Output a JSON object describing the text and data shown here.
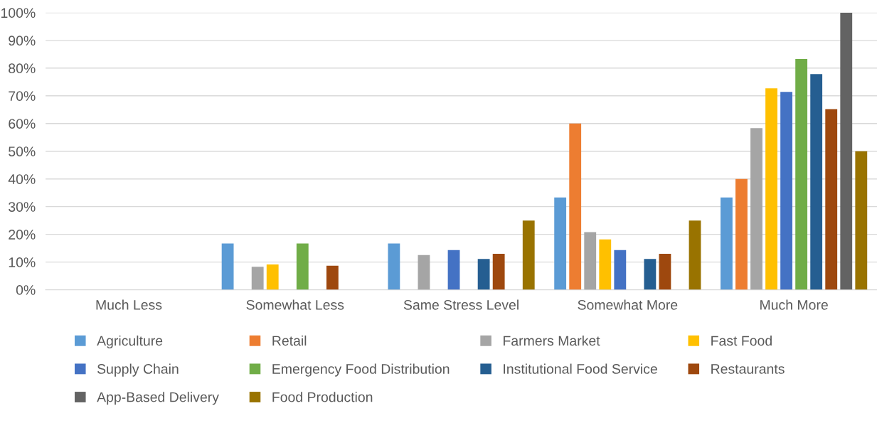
{
  "chart_data": {
    "type": "bar",
    "categories": [
      "Much Less",
      "Somewhat Less",
      "Same Stress Level",
      "Somewhat More",
      "Much More"
    ],
    "series": [
      {
        "name": "Agriculture",
        "color": "#5b9bd5",
        "values": [
          0,
          16.7,
          16.7,
          33.3,
          33.3
        ]
      },
      {
        "name": "Retail",
        "color": "#ed7d31",
        "values": [
          0,
          0,
          0,
          60,
          40
        ]
      },
      {
        "name": "Farmers Market",
        "color": "#a5a5a5",
        "values": [
          0,
          8.3,
          12.5,
          20.8,
          58.3
        ]
      },
      {
        "name": "Fast Food",
        "color": "#ffc000",
        "values": [
          0,
          9.1,
          0,
          18.2,
          72.7
        ]
      },
      {
        "name": "Supply Chain",
        "color": "#4472c4",
        "values": [
          0,
          0,
          14.3,
          14.3,
          71.4
        ]
      },
      {
        "name": "Emergency Food Distribution",
        "color": "#70ad47",
        "values": [
          0,
          16.7,
          0,
          0,
          83.3
        ]
      },
      {
        "name": "Institutional Food Service",
        "color": "#255e91",
        "values": [
          0,
          0,
          11.1,
          11.1,
          77.8
        ]
      },
      {
        "name": "Restaurants",
        "color": "#9e480e",
        "values": [
          0,
          8.7,
          13.0,
          13.0,
          65.2
        ]
      },
      {
        "name": "App-Based Delivery",
        "color": "#636363",
        "values": [
          0,
          0,
          0,
          0,
          100
        ]
      },
      {
        "name": "Food Production",
        "color": "#997300",
        "values": [
          0,
          0,
          25,
          25,
          50
        ]
      }
    ],
    "ylim": [
      0,
      100
    ],
    "yticks": [
      {
        "value": 0,
        "label": "0%"
      },
      {
        "value": 10,
        "label": "10%"
      },
      {
        "value": 20,
        "label": "20%"
      },
      {
        "value": 30,
        "label": "30%"
      },
      {
        "value": 40,
        "label": "40%"
      },
      {
        "value": 50,
        "label": "50%"
      },
      {
        "value": 60,
        "label": "60%"
      },
      {
        "value": 70,
        "label": "70%"
      },
      {
        "value": 80,
        "label": "80%"
      },
      {
        "value": 90,
        "label": "90%"
      },
      {
        "value": 100,
        "label": "100%"
      }
    ],
    "grid": "y",
    "legend": "bottom"
  }
}
